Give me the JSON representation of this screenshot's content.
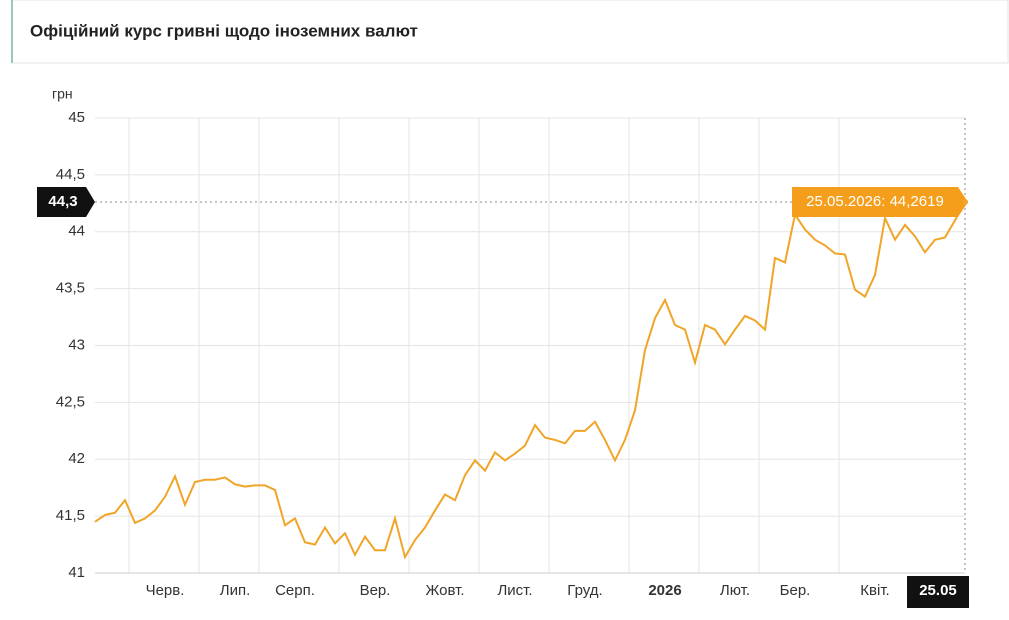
{
  "chart_data": {
    "type": "line",
    "title": "Офіційний курс гривні щодо іноземних валют",
    "y_unit": "грн",
    "categories": [
      null,
      null,
      null,
      null,
      null,
      null,
      null,
      "Черв.",
      null,
      null,
      null,
      null,
      null,
      null,
      "Лип.",
      null,
      null,
      null,
      null,
      null,
      "Серп.",
      null,
      null,
      null,
      null,
      null,
      null,
      null,
      "Вер.",
      null,
      null,
      null,
      null,
      null,
      null,
      "Жовт.",
      null,
      null,
      null,
      null,
      null,
      null,
      "Лист.",
      null,
      null,
      null,
      null,
      null,
      null,
      "Груд.",
      null,
      null,
      null,
      null,
      null,
      null,
      null,
      "2026",
      null,
      null,
      null,
      null,
      null,
      null,
      "Лют.",
      null,
      null,
      null,
      null,
      null,
      "Бер.",
      null,
      null,
      null,
      null,
      null,
      null,
      null,
      "Квіт.",
      null,
      null,
      null,
      null,
      null,
      null,
      null,
      null,
      "25.05"
    ],
    "series": [
      {
        "color": "#f0a529",
        "values": [
          41.45,
          41.51,
          41.53,
          41.64,
          41.44,
          41.48,
          41.55,
          41.67,
          41.85,
          41.6,
          41.8,
          41.82,
          41.82,
          41.84,
          41.78,
          41.76,
          41.77,
          41.77,
          41.73,
          41.42,
          41.48,
          41.27,
          41.25,
          41.4,
          41.26,
          41.35,
          41.16,
          41.32,
          41.2,
          41.2,
          41.48,
          41.14,
          41.29,
          41.4,
          41.55,
          41.69,
          41.64,
          41.86,
          41.99,
          41.9,
          42.06,
          41.99,
          42.05,
          42.12,
          42.3,
          42.19,
          42.17,
          42.14,
          42.25,
          42.25,
          42.33,
          42.17,
          41.99,
          42.17,
          42.43,
          42.96,
          43.24,
          43.4,
          43.18,
          43.14,
          42.85,
          43.18,
          43.14,
          43.01,
          43.14,
          43.26,
          43.22,
          43.14,
          43.77,
          43.73,
          44.15,
          44.02,
          43.93,
          43.88,
          43.81,
          43.8,
          43.49,
          43.43,
          43.62,
          44.12,
          43.93,
          44.06,
          43.96,
          43.82,
          43.93,
          43.95,
          44.1,
          44.2619
        ]
      }
    ],
    "ylim": [
      41,
      45
    ],
    "yticks": [
      41,
      {
        "value": 41.5,
        "label": "41,5"
      },
      42,
      {
        "value": 42.5,
        "label": "42,5"
      },
      43,
      {
        "value": 43.5,
        "label": "43,5"
      },
      44,
      {
        "value": 44.5,
        "label": "44,5"
      },
      45
    ],
    "grid": true,
    "crosshair": {
      "value": 44.2619,
      "label": "44,3"
    },
    "tooltip": "25.05.2026: 44,2619"
  }
}
